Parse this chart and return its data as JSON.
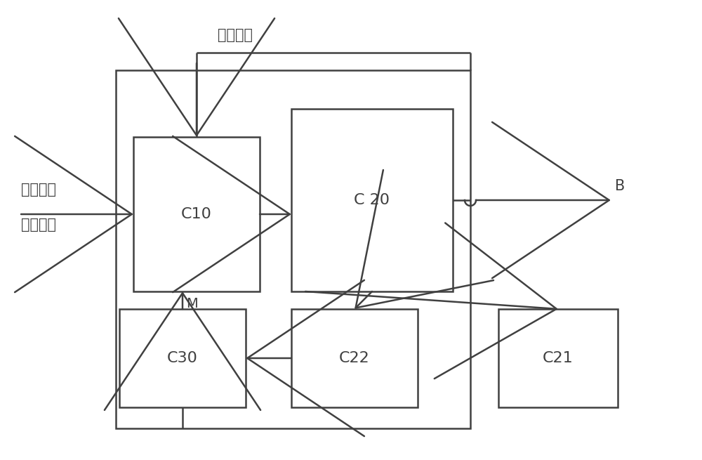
{
  "background_color": "#ffffff",
  "box_color": "#ffffff",
  "box_edge_color": "#404040",
  "line_color": "#404040",
  "text_color": "#404040",
  "label_gas": "气体通入",
  "label_line1": "钒镁离子",
  "label_line2": "浸取清液",
  "label_B": "B",
  "label_M": "M",
  "label_C10": "C10",
  "label_C20": "C 20",
  "label_C22": "C22",
  "label_C30": "C30",
  "label_C21": "C21"
}
